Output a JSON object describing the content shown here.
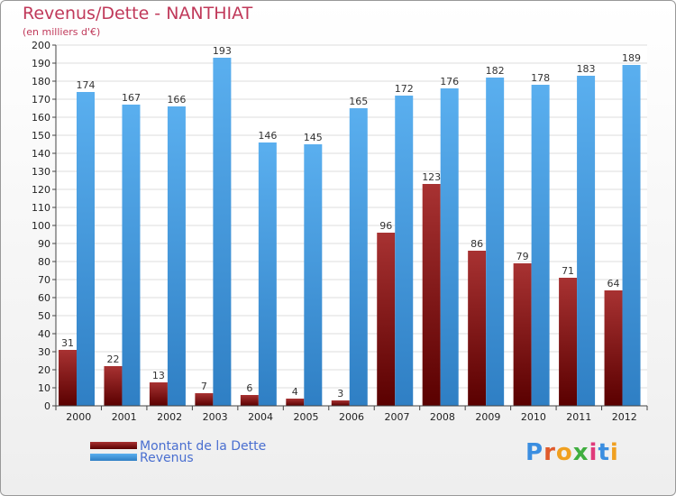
{
  "header": {
    "title": "Revenus/Dette - NANTHIAT",
    "subtitle": "(en milliers d'€)"
  },
  "logo": {
    "text": "Proxiti"
  },
  "chart_data": {
    "type": "bar",
    "categories": [
      "2000",
      "2001",
      "2002",
      "2003",
      "2004",
      "2005",
      "2006",
      "2007",
      "2008",
      "2009",
      "2010",
      "2011",
      "2012"
    ],
    "series": [
      {
        "name": "Montant de la Dette",
        "color": "#8b1a1a",
        "values": [
          31,
          22,
          13,
          7,
          6,
          4,
          3,
          96,
          123,
          86,
          79,
          71,
          64
        ]
      },
      {
        "name": "Revenus",
        "color": "#4da3e8",
        "values": [
          174,
          167,
          166,
          193,
          146,
          145,
          165,
          172,
          176,
          182,
          178,
          183,
          189
        ]
      }
    ],
    "title": "Revenus/Dette - NANTHIAT",
    "ylabel": "(en milliers d'€)",
    "ylim": [
      0,
      200
    ],
    "ytick_step": 10,
    "grid": true,
    "legend": "bottom-left"
  }
}
